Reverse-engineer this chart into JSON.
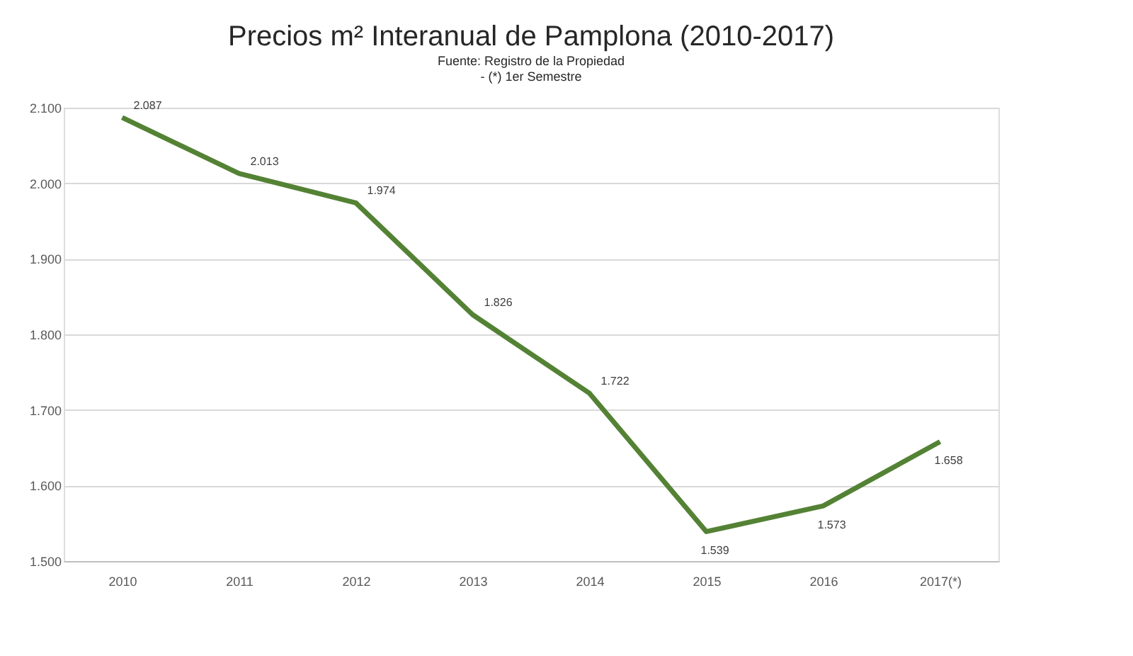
{
  "chart_data": {
    "type": "line",
    "title": "Precios m² Interanual de Pamplona (2010-2017)",
    "subtitle": "Fuente: Registro de la Propiedad",
    "annotations": [
      "- (*) 1er Semestre"
    ],
    "categories": [
      "2010",
      "2011",
      "2012",
      "2013",
      "2014",
      "2015",
      "2016",
      "2017(*)"
    ],
    "series": [
      {
        "color": "#548235",
        "values": [
          2087,
          2013,
          1974,
          1826,
          1722,
          1539,
          1573,
          1658
        ],
        "value_labels": [
          "2.087",
          "2.013",
          "1.974",
          "1.826",
          "1.722",
          "1.539",
          "1.573",
          "1.658"
        ]
      }
    ],
    "ylim": [
      1500,
      2100
    ],
    "yticks": [
      {
        "value": 1500,
        "label": "1.500"
      },
      {
        "value": 1600,
        "label": "1.600"
      },
      {
        "value": 1700,
        "label": "1.700"
      },
      {
        "value": 1800,
        "label": "1.800"
      },
      {
        "value": 1900,
        "label": "1.900"
      },
      {
        "value": 2000,
        "label": "2.000"
      },
      {
        "value": 2100,
        "label": "2.100"
      }
    ],
    "grid": "y",
    "marker": "none",
    "line_style": "solid"
  }
}
